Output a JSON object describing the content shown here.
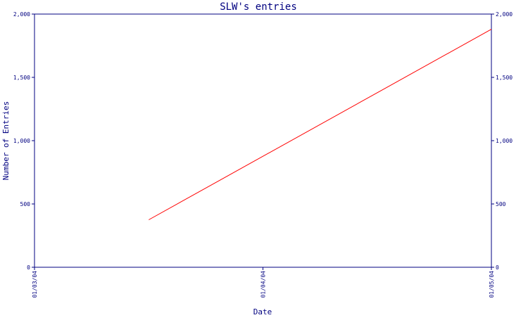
{
  "chart_data": {
    "type": "line",
    "title": "SLW's entries",
    "xlabel": "Date",
    "ylabel": "Number of Entries",
    "ylim": [
      0,
      2000
    ],
    "y_ticks": [
      0,
      500,
      1000,
      1500,
      2000
    ],
    "y_tick_labels": [
      "0",
      "500",
      "1,000",
      "1,500",
      "2,000"
    ],
    "x_tick_labels": [
      "01/03/04",
      "01/04/04",
      "01/05/04"
    ],
    "xlim": [
      "01/03/04",
      "01/05/04"
    ],
    "grid": false,
    "series": [
      {
        "color": "#ff0000",
        "x": [
          "01/03/04 12:00",
          "01/05/04 00:00"
        ],
        "y": [
          375,
          1880
        ]
      }
    ],
    "colors": {
      "axis": "#000080",
      "text": "#000080",
      "line": "#ff0000",
      "background": "#ffffff"
    }
  }
}
